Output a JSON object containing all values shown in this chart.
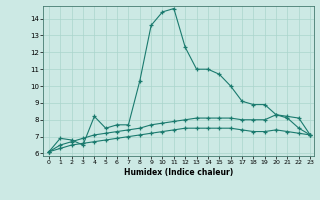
{
  "xlabel": "Humidex (Indice chaleur)",
  "bg_color": "#cce9e4",
  "line_color": "#1a7a6e",
  "grid_color": "#aad5cc",
  "xlim": [
    -0.5,
    23.3
  ],
  "ylim": [
    5.85,
    14.75
  ],
  "yticks": [
    6,
    7,
    8,
    9,
    10,
    11,
    12,
    13,
    14
  ],
  "xticks": [
    0,
    1,
    2,
    3,
    4,
    5,
    6,
    7,
    8,
    9,
    10,
    11,
    12,
    13,
    14,
    15,
    16,
    17,
    18,
    19,
    20,
    21,
    22,
    23
  ],
  "series1_x": [
    0,
    1,
    2,
    3,
    4,
    5,
    6,
    7,
    8,
    9,
    10,
    11,
    12,
    13,
    14,
    15,
    16,
    17,
    18,
    19,
    20,
    21,
    22,
    23
  ],
  "series1_y": [
    6.1,
    6.9,
    6.8,
    6.5,
    8.2,
    7.5,
    7.7,
    7.7,
    10.3,
    13.6,
    14.4,
    14.6,
    12.3,
    11.0,
    11.0,
    10.7,
    10.0,
    9.1,
    8.9,
    8.9,
    8.3,
    8.1,
    7.5,
    7.1
  ],
  "series2_x": [
    0,
    1,
    2,
    3,
    4,
    5,
    6,
    7,
    8,
    9,
    10,
    11,
    12,
    13,
    14,
    15,
    16,
    17,
    18,
    19,
    20,
    21,
    22,
    23
  ],
  "series2_y": [
    6.1,
    6.5,
    6.7,
    6.9,
    7.1,
    7.2,
    7.3,
    7.4,
    7.5,
    7.7,
    7.8,
    7.9,
    8.0,
    8.1,
    8.1,
    8.1,
    8.1,
    8.0,
    8.0,
    8.0,
    8.3,
    8.2,
    8.1,
    7.1
  ],
  "series3_x": [
    0,
    1,
    2,
    3,
    4,
    5,
    6,
    7,
    8,
    9,
    10,
    11,
    12,
    13,
    14,
    15,
    16,
    17,
    18,
    19,
    20,
    21,
    22,
    23
  ],
  "series3_y": [
    6.1,
    6.3,
    6.5,
    6.6,
    6.7,
    6.8,
    6.9,
    7.0,
    7.1,
    7.2,
    7.3,
    7.4,
    7.5,
    7.5,
    7.5,
    7.5,
    7.5,
    7.4,
    7.3,
    7.3,
    7.4,
    7.3,
    7.2,
    7.1
  ]
}
